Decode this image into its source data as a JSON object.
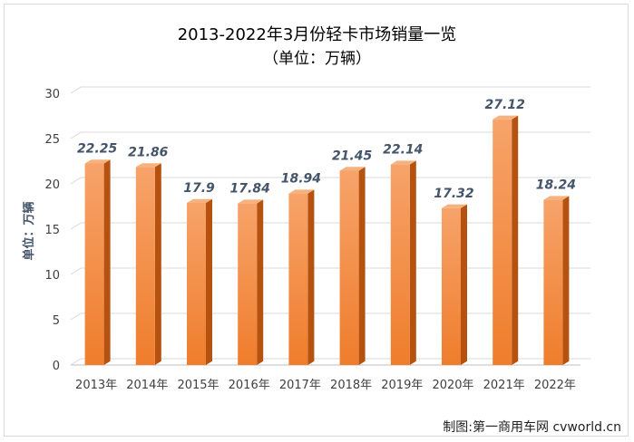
{
  "chart_data": {
    "type": "bar",
    "title": "2013-2022年3月份轻卡市场销量一览",
    "subtitle": "（单位：万辆）",
    "ylabel": "单位：万辆",
    "xlabel": "",
    "categories": [
      "2013年",
      "2014年",
      "2015年",
      "2016年",
      "2017年",
      "2018年",
      "2019年",
      "2020年",
      "2021年",
      "2022年"
    ],
    "values": [
      22.25,
      21.86,
      17.9,
      17.84,
      18.94,
      21.45,
      22.14,
      17.32,
      27.12,
      18.24
    ],
    "value_labels": [
      "22.25",
      "21.86",
      "17.9",
      "17.84",
      "18.94",
      "21.45",
      "22.14",
      "17.32",
      "27.12",
      "18.24"
    ],
    "ylim": [
      0,
      30
    ],
    "yticks": [
      0,
      5,
      10,
      15,
      20,
      25,
      30
    ],
    "grid": true,
    "legend": "none",
    "colors": {
      "bar_front_top": "#f7a36a",
      "bar_front_bottom": "#ef7d2c",
      "bar_side": "#b5520f",
      "bar_top": "#f6b27e",
      "grid": "#d9d9d9",
      "label": "#44546a"
    }
  },
  "credit": "制图:第一商用车网 cvworld.cn"
}
